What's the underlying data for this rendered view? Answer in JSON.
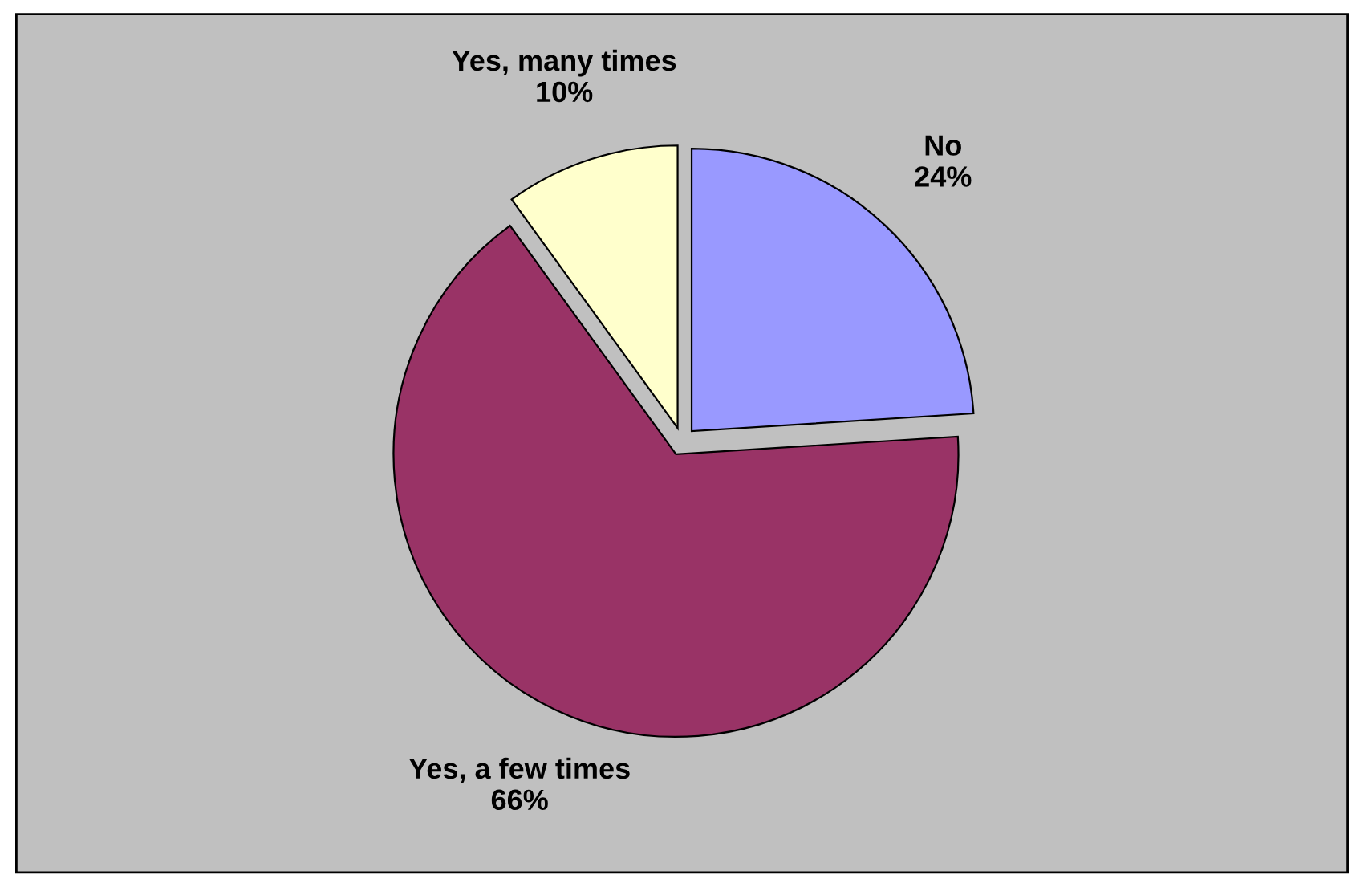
{
  "chart_data": {
    "type": "pie",
    "categories": [
      "No",
      "Yes, a few times",
      "Yes, many times"
    ],
    "values": [
      24,
      66,
      10
    ],
    "value_labels": [
      "24%",
      "66%",
      "10%"
    ],
    "colors": [
      "#9999ff",
      "#993366",
      "#ffffcc"
    ],
    "legend": false
  }
}
